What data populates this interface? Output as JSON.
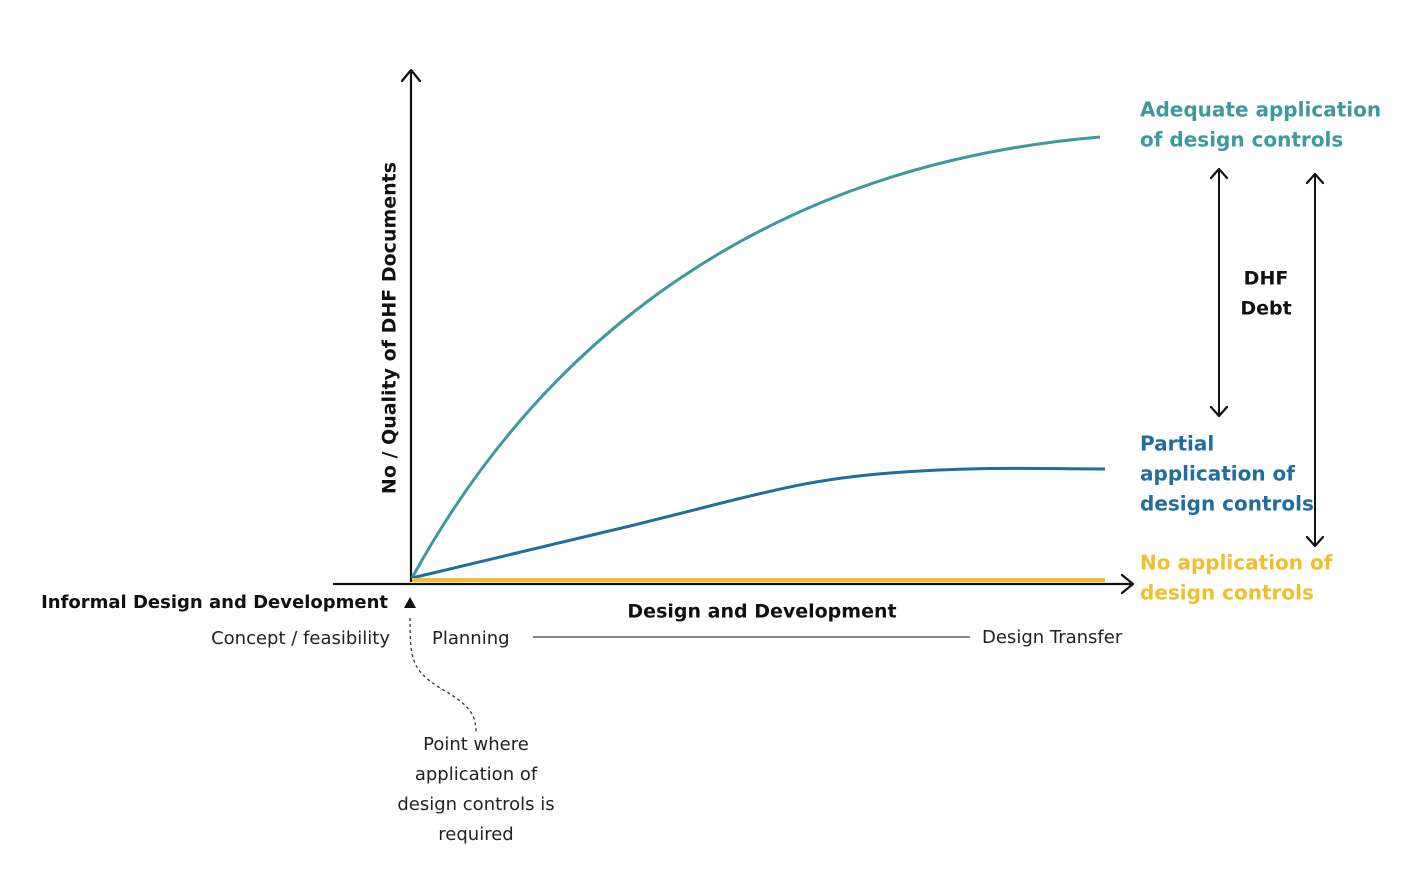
{
  "y_axis_label": "No / Quality of DHF Documents",
  "x_axis": {
    "left_label": "Informal Design and Development",
    "center_label": "Design and Development",
    "stages": [
      "Concept / feasibility",
      "Planning",
      "Design Transfer"
    ]
  },
  "curves": [
    {
      "label_lines": [
        "Adequate application",
        "of design controls"
      ]
    },
    {
      "label_lines": [
        "Partial",
        "application of",
        "design controls"
      ]
    },
    {
      "label_lines": [
        "No application of",
        "design controls"
      ]
    }
  ],
  "debt_label_lines": [
    "DHF",
    "Debt"
  ],
  "annotation_lines": [
    "Point where",
    "application of",
    "design controls is",
    "required"
  ]
}
